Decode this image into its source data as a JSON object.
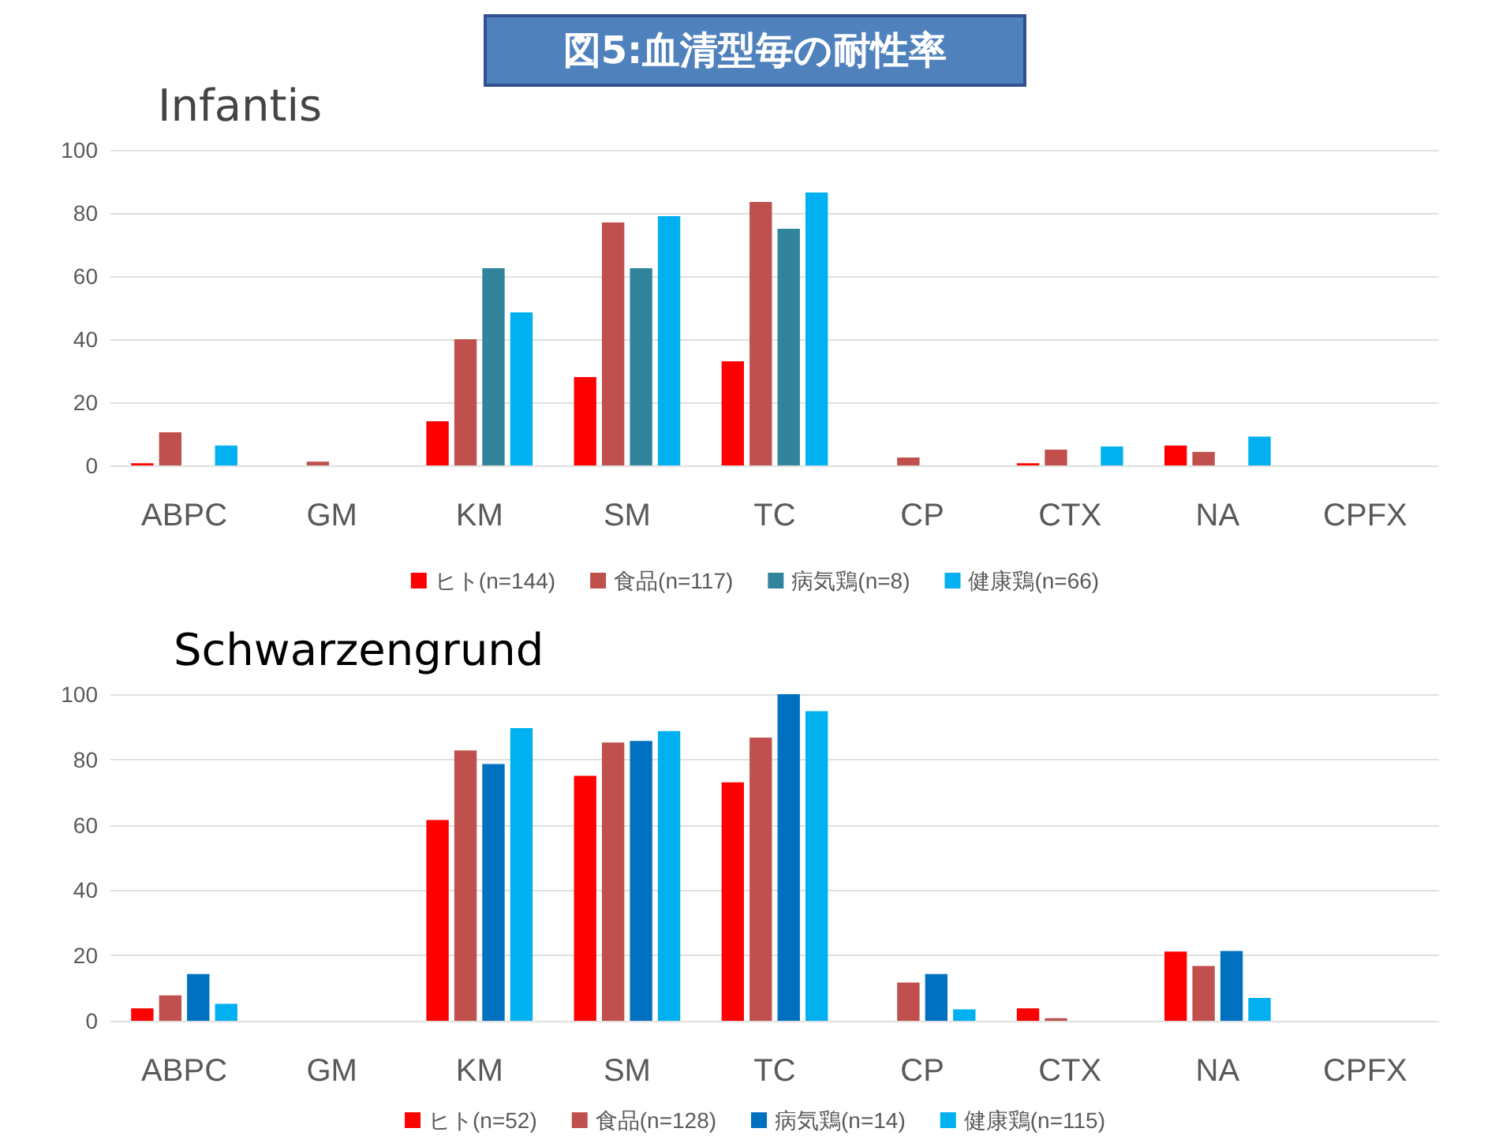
{
  "chart_data": [
    {
      "type": "bar",
      "title": "図5:血清型毎の耐性率",
      "subtitle": "Infantis",
      "categories": [
        "ABPC",
        "GM",
        "KM",
        "SM",
        "TC",
        "CP",
        "CTX",
        "NA",
        "CPFX"
      ],
      "series": [
        {
          "name": "ヒト(n=144)",
          "color": "#ff0000",
          "values": [
            0.7,
            0,
            14,
            28,
            33,
            0,
            0.7,
            6.3,
            0
          ]
        },
        {
          "name": "食品(n=117)",
          "color": "#c0504d",
          "values": [
            10.5,
            1.2,
            40,
            77,
            83.5,
            2.5,
            5,
            4.3,
            0
          ]
        },
        {
          "name": "病気鶏(n=8)",
          "color": "#31849b",
          "values": [
            0,
            0,
            62.5,
            62.5,
            75,
            0,
            0,
            0,
            0
          ]
        },
        {
          "name": "健康鶏(n=66)",
          "color": "#00b0f0",
          "values": [
            6.3,
            0,
            48.5,
            79,
            86.5,
            0,
            6,
            9.1,
            0
          ]
        }
      ],
      "ylim": [
        0,
        100
      ],
      "yticks": [
        0,
        20,
        40,
        60,
        80,
        100
      ],
      "grid": "y",
      "legend": "bottom"
    },
    {
      "type": "bar",
      "title": "Schwarzengrund",
      "categories": [
        "ABPC",
        "GM",
        "KM",
        "SM",
        "TC",
        "CP",
        "CTX",
        "NA",
        "CPFX"
      ],
      "series": [
        {
          "name": "ヒト(n=52)",
          "color": "#ff0000",
          "values": [
            3.8,
            0,
            61.5,
            75,
            73,
            0,
            3.8,
            21.2,
            0
          ]
        },
        {
          "name": "食品(n=128)",
          "color": "#c0504d",
          "values": [
            7.8,
            0,
            82.8,
            85.2,
            86.7,
            11.7,
            0.8,
            16.8,
            0
          ]
        },
        {
          "name": "病気鶏(n=14)",
          "color": "#0070c0",
          "values": [
            14.3,
            0,
            78.6,
            85.7,
            100,
            14.3,
            0,
            21.4,
            0
          ]
        },
        {
          "name": "健康鶏(n=115)",
          "color": "#00b0f0",
          "values": [
            5.2,
            0,
            89.6,
            88.7,
            94.8,
            3.5,
            0,
            7,
            0
          ]
        }
      ],
      "ylim": [
        0,
        100
      ],
      "yticks": [
        0,
        20,
        40,
        60,
        80,
        100
      ],
      "grid": "y",
      "legend": "bottom"
    }
  ]
}
